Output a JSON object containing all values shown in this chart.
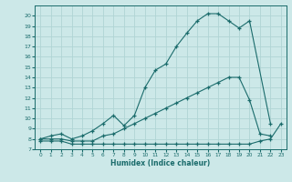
{
  "xlabel": "Humidex (Indice chaleur)",
  "xlim": [
    -0.5,
    23.5
  ],
  "ylim": [
    7,
    21
  ],
  "yticks": [
    7,
    8,
    9,
    10,
    11,
    12,
    13,
    14,
    15,
    16,
    17,
    18,
    19,
    20
  ],
  "xticks": [
    0,
    1,
    2,
    3,
    4,
    5,
    6,
    7,
    8,
    9,
    10,
    11,
    12,
    13,
    14,
    15,
    16,
    17,
    18,
    19,
    20,
    21,
    22,
    23
  ],
  "bg_color": "#cce8e8",
  "line_color": "#1a6b6b",
  "grid_color": "#b0d4d4",
  "line1_x": [
    0,
    1,
    2,
    3,
    4,
    5,
    6,
    7,
    8,
    9,
    10,
    11,
    12,
    13,
    14,
    15,
    16,
    17,
    18,
    19,
    20,
    22
  ],
  "line1_y": [
    8,
    8.3,
    8.5,
    8.0,
    8.3,
    8.8,
    9.5,
    10.3,
    9.3,
    10.3,
    13.0,
    14.7,
    15.3,
    17.0,
    18.3,
    19.5,
    20.2,
    20.2,
    19.5,
    18.8,
    19.5,
    9.5
  ],
  "line2_x": [
    0,
    1,
    2,
    3,
    4,
    5,
    6,
    7,
    8,
    9,
    10,
    11,
    12,
    13,
    14,
    15,
    16,
    17,
    18,
    19,
    20,
    21,
    22
  ],
  "line2_y": [
    8,
    8,
    8,
    7.8,
    7.8,
    7.8,
    8.3,
    8.5,
    9.0,
    9.5,
    10.0,
    10.5,
    11.0,
    11.5,
    12.0,
    12.5,
    13.0,
    13.5,
    14.0,
    14.0,
    11.8,
    8.5,
    8.3
  ],
  "line3_x": [
    0,
    1,
    2,
    3,
    4,
    5,
    6,
    7,
    8,
    9,
    10,
    11,
    12,
    13,
    14,
    15,
    16,
    17,
    18,
    19,
    20,
    21,
    22,
    23
  ],
  "line3_y": [
    7.8,
    7.8,
    7.8,
    7.5,
    7.5,
    7.5,
    7.5,
    7.5,
    7.5,
    7.5,
    7.5,
    7.5,
    7.5,
    7.5,
    7.5,
    7.5,
    7.5,
    7.5,
    7.5,
    7.5,
    7.5,
    7.8,
    8.0,
    9.5
  ]
}
